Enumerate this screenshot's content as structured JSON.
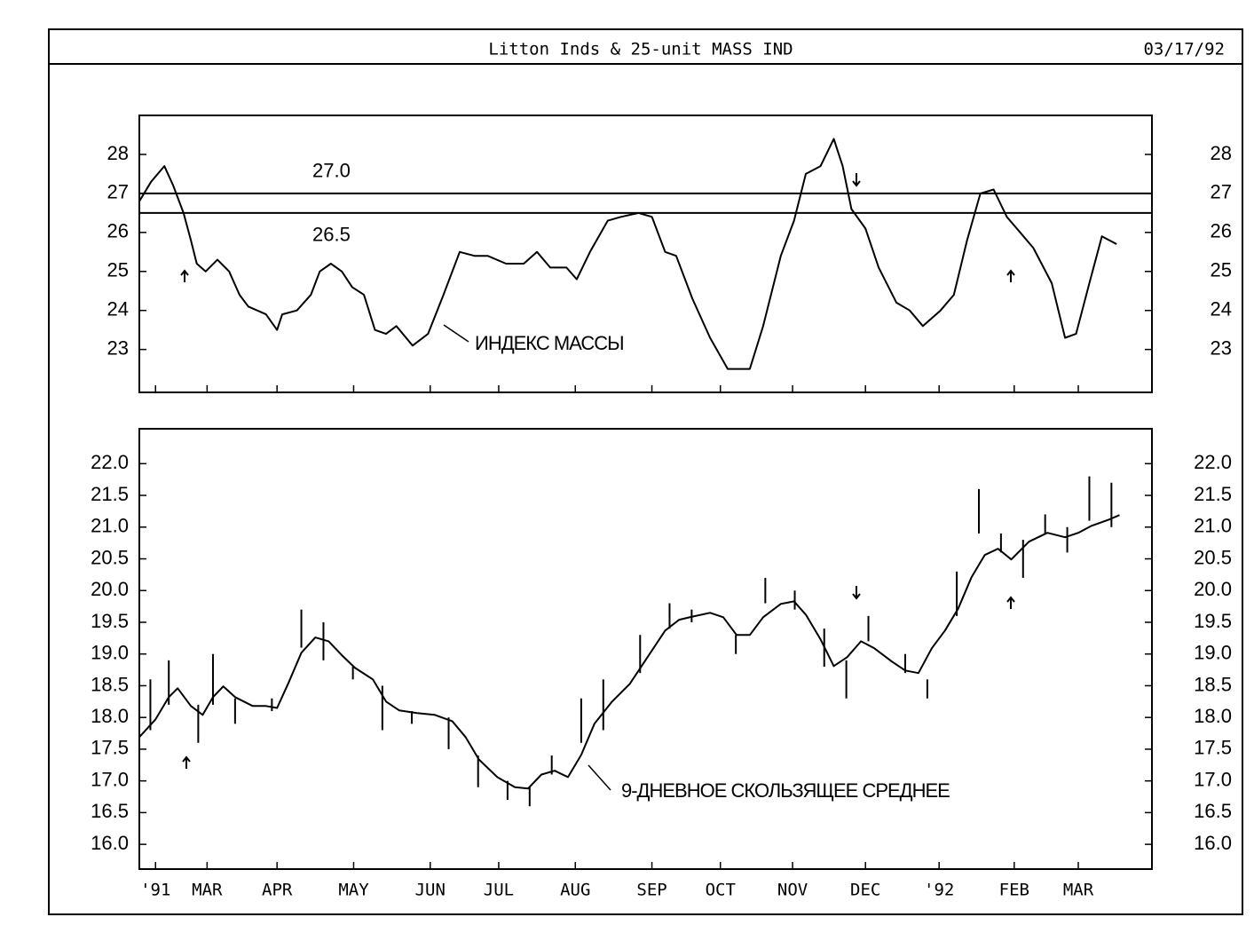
{
  "header": {
    "title": "Litton Inds & 25-unit MASS IND",
    "date": "03/17/92"
  },
  "chart_data": [
    {
      "type": "line",
      "x": [
        0,
        0.16,
        0.34,
        0.46,
        0.6,
        0.7,
        0.78,
        0.9,
        1.06,
        1.22,
        1.36,
        1.48,
        1.72,
        1.87,
        1.94,
        2.14,
        2.33,
        2.45,
        2.6,
        2.75,
        2.89,
        3.05,
        3.2,
        3.35,
        3.49,
        3.71,
        3.92,
        4.13,
        4.35,
        4.55,
        4.73,
        4.98,
        5.22,
        5.4,
        5.58,
        5.8,
        5.94,
        6.12,
        6.36,
        6.54,
        6.78,
        6.96,
        7.14,
        7.29,
        7.51,
        7.75,
        7.99,
        8.29,
        8.47,
        8.71,
        8.89,
        9.05,
        9.25,
        9.43,
        9.55,
        9.67,
        9.86,
        10.04,
        10.28,
        10.46,
        10.64,
        10.88,
        11.06,
        11.24,
        11.42,
        11.6,
        11.78,
        11.96,
        12.14,
        12.39,
        12.57,
        12.72,
        12.9,
        13.07,
        13.27
      ],
      "series": [
        {
          "color": "#000000",
          "values": [
            26.8,
            27.3,
            27.7,
            27.2,
            26.5,
            25.8,
            25.2,
            25.0,
            25.3,
            25.0,
            24.4,
            24.1,
            23.9,
            23.5,
            23.9,
            24.0,
            24.4,
            25.0,
            25.2,
            25.0,
            24.6,
            24.4,
            23.5,
            23.4,
            23.6,
            23.1,
            23.4,
            24.4,
            25.5,
            25.4,
            25.4,
            25.2,
            25.2,
            25.5,
            25.1,
            25.1,
            24.8,
            25.5,
            26.3,
            26.4,
            26.5,
            26.4,
            25.5,
            25.4,
            24.3,
            23.3,
            22.5,
            22.5,
            23.6,
            25.4,
            26.3,
            27.5,
            27.7,
            28.4,
            27.7,
            26.6,
            26.1,
            25.1,
            24.2,
            24.0,
            23.6,
            24.0,
            24.4,
            25.8,
            27.0,
            27.1,
            26.4,
            26.0,
            25.6,
            24.7,
            23.3,
            23.4,
            24.7,
            25.9,
            25.7
          ]
        }
      ],
      "xlim": [
        0,
        13.75
      ],
      "ylim": [
        21.9,
        29.0
      ],
      "yticks": [
        23,
        24,
        25,
        26,
        27,
        28
      ],
      "reference_lines": [
        {
          "value": 27.0,
          "label": "27.0"
        },
        {
          "value": 26.5,
          "label": "26.5"
        }
      ],
      "annotation": "ИНДЕКС МАССЫ"
    },
    {
      "type": "line",
      "x": [
        0,
        0.22,
        0.4,
        0.52,
        0.7,
        0.86,
        1.0,
        1.14,
        1.3,
        1.54,
        1.72,
        1.87,
        2.02,
        2.2,
        2.39,
        2.57,
        2.75,
        2.93,
        3.17,
        3.35,
        3.53,
        3.77,
        4.01,
        4.25,
        4.43,
        4.61,
        4.86,
        5.1,
        5.28,
        5.46,
        5.64,
        5.82,
        6.0,
        6.18,
        6.42,
        6.66,
        6.9,
        7.14,
        7.33,
        7.51,
        7.75,
        7.93,
        8.11,
        8.29,
        8.47,
        8.71,
        8.89,
        9.05,
        9.25,
        9.43,
        9.61,
        9.8,
        9.98,
        10.22,
        10.4,
        10.58,
        10.76,
        10.94,
        11.12,
        11.3,
        11.48,
        11.66,
        11.84,
        12.08,
        12.33,
        12.57,
        12.75,
        12.93,
        13.17,
        13.31
      ],
      "series": [
        {
          "name": "9-ДНЕВНОЕ СКОЛЬЗЯЩЕЕ СРЕДНЕЕ",
          "color": "#000000",
          "values": [
            17.69,
            17.97,
            18.32,
            18.46,
            18.18,
            18.04,
            18.32,
            18.49,
            18.32,
            18.18,
            18.18,
            18.15,
            18.53,
            19.02,
            19.26,
            19.2,
            18.98,
            18.78,
            18.6,
            18.25,
            18.11,
            18.07,
            18.04,
            17.94,
            17.69,
            17.34,
            17.06,
            16.9,
            16.88,
            17.1,
            17.16,
            17.06,
            17.41,
            17.9,
            18.25,
            18.53,
            18.95,
            19.37,
            19.54,
            19.59,
            19.65,
            19.58,
            19.3,
            19.3,
            19.58,
            19.79,
            19.83,
            19.62,
            19.23,
            18.81,
            18.95,
            19.2,
            19.09,
            18.88,
            18.74,
            18.7,
            19.09,
            19.37,
            19.72,
            20.21,
            20.56,
            20.66,
            20.49,
            20.77,
            20.91,
            20.84,
            20.91,
            21.02,
            21.12,
            21.19
          ]
        }
      ],
      "bars": {
        "x": [
          0.15,
          0.4,
          0.8,
          1.0,
          1.3,
          1.8,
          2.2,
          2.5,
          2.9,
          3.3,
          3.7,
          4.2,
          4.6,
          5.0,
          5.3,
          5.6,
          6.0,
          6.3,
          6.8,
          7.2,
          7.5,
          8.1,
          8.5,
          8.9,
          9.3,
          9.6,
          9.9,
          10.4,
          10.7,
          11.1,
          11.4,
          11.7,
          12.0,
          12.3,
          12.6,
          12.9,
          13.2
        ],
        "high": [
          18.6,
          18.9,
          18.2,
          19.0,
          18.3,
          18.3,
          19.7,
          19.5,
          18.8,
          18.5,
          18.1,
          18.0,
          17.4,
          17.0,
          16.9,
          17.4,
          18.3,
          18.6,
          19.3,
          19.8,
          19.7,
          19.3,
          20.2,
          20.0,
          19.4,
          18.9,
          19.6,
          19.0,
          18.6,
          20.3,
          21.6,
          20.9,
          20.8,
          21.2,
          21.0,
          21.8,
          21.7
        ],
        "low": [
          17.8,
          18.2,
          17.6,
          18.2,
          17.9,
          18.1,
          19.1,
          18.9,
          18.6,
          17.8,
          17.9,
          17.5,
          16.9,
          16.7,
          16.6,
          17.1,
          17.6,
          17.8,
          18.7,
          19.4,
          19.5,
          19.0,
          19.8,
          19.7,
          18.8,
          18.3,
          19.2,
          18.7,
          18.3,
          19.6,
          20.9,
          20.6,
          20.2,
          20.9,
          20.6,
          21.1,
          21.0
        ]
      },
      "xlim": [
        0,
        13.75
      ],
      "xticks": [
        {
          "value": 0.22,
          "label": "'91"
        },
        {
          "value": 0.92,
          "label": "MAR"
        },
        {
          "value": 1.87,
          "label": "APR"
        },
        {
          "value": 2.91,
          "label": "MAY"
        },
        {
          "value": 3.95,
          "label": "JUN"
        },
        {
          "value": 4.88,
          "label": "JUL"
        },
        {
          "value": 5.92,
          "label": "AUG"
        },
        {
          "value": 6.96,
          "label": "SEP"
        },
        {
          "value": 7.89,
          "label": "OCT"
        },
        {
          "value": 8.87,
          "label": "NOV"
        },
        {
          "value": 9.86,
          "label": "DEC"
        },
        {
          "value": 10.86,
          "label": "'92"
        },
        {
          "value": 11.88,
          "label": "FEB"
        },
        {
          "value": 12.75,
          "label": "MAR"
        }
      ],
      "ylim": [
        15.61,
        22.55
      ],
      "yticks": [
        {
          "value": 16.0,
          "label": "16.0"
        },
        {
          "value": 16.5,
          "label": "16.5"
        },
        {
          "value": 17.0,
          "label": "17.0"
        },
        {
          "value": 17.5,
          "label": "17.5"
        },
        {
          "value": 18.0,
          "label": "18.0"
        },
        {
          "value": 18.5,
          "label": "18.5"
        },
        {
          "value": 19.0,
          "label": "19.0"
        },
        {
          "value": 19.5,
          "label": "19.5"
        },
        {
          "value": 20.0,
          "label": "20.0"
        },
        {
          "value": 20.5,
          "label": "20.5"
        },
        {
          "value": 21.0,
          "label": "21.0"
        },
        {
          "value": 21.5,
          "label": "21.5"
        },
        {
          "value": 22.0,
          "label": "22.0"
        }
      ]
    }
  ]
}
